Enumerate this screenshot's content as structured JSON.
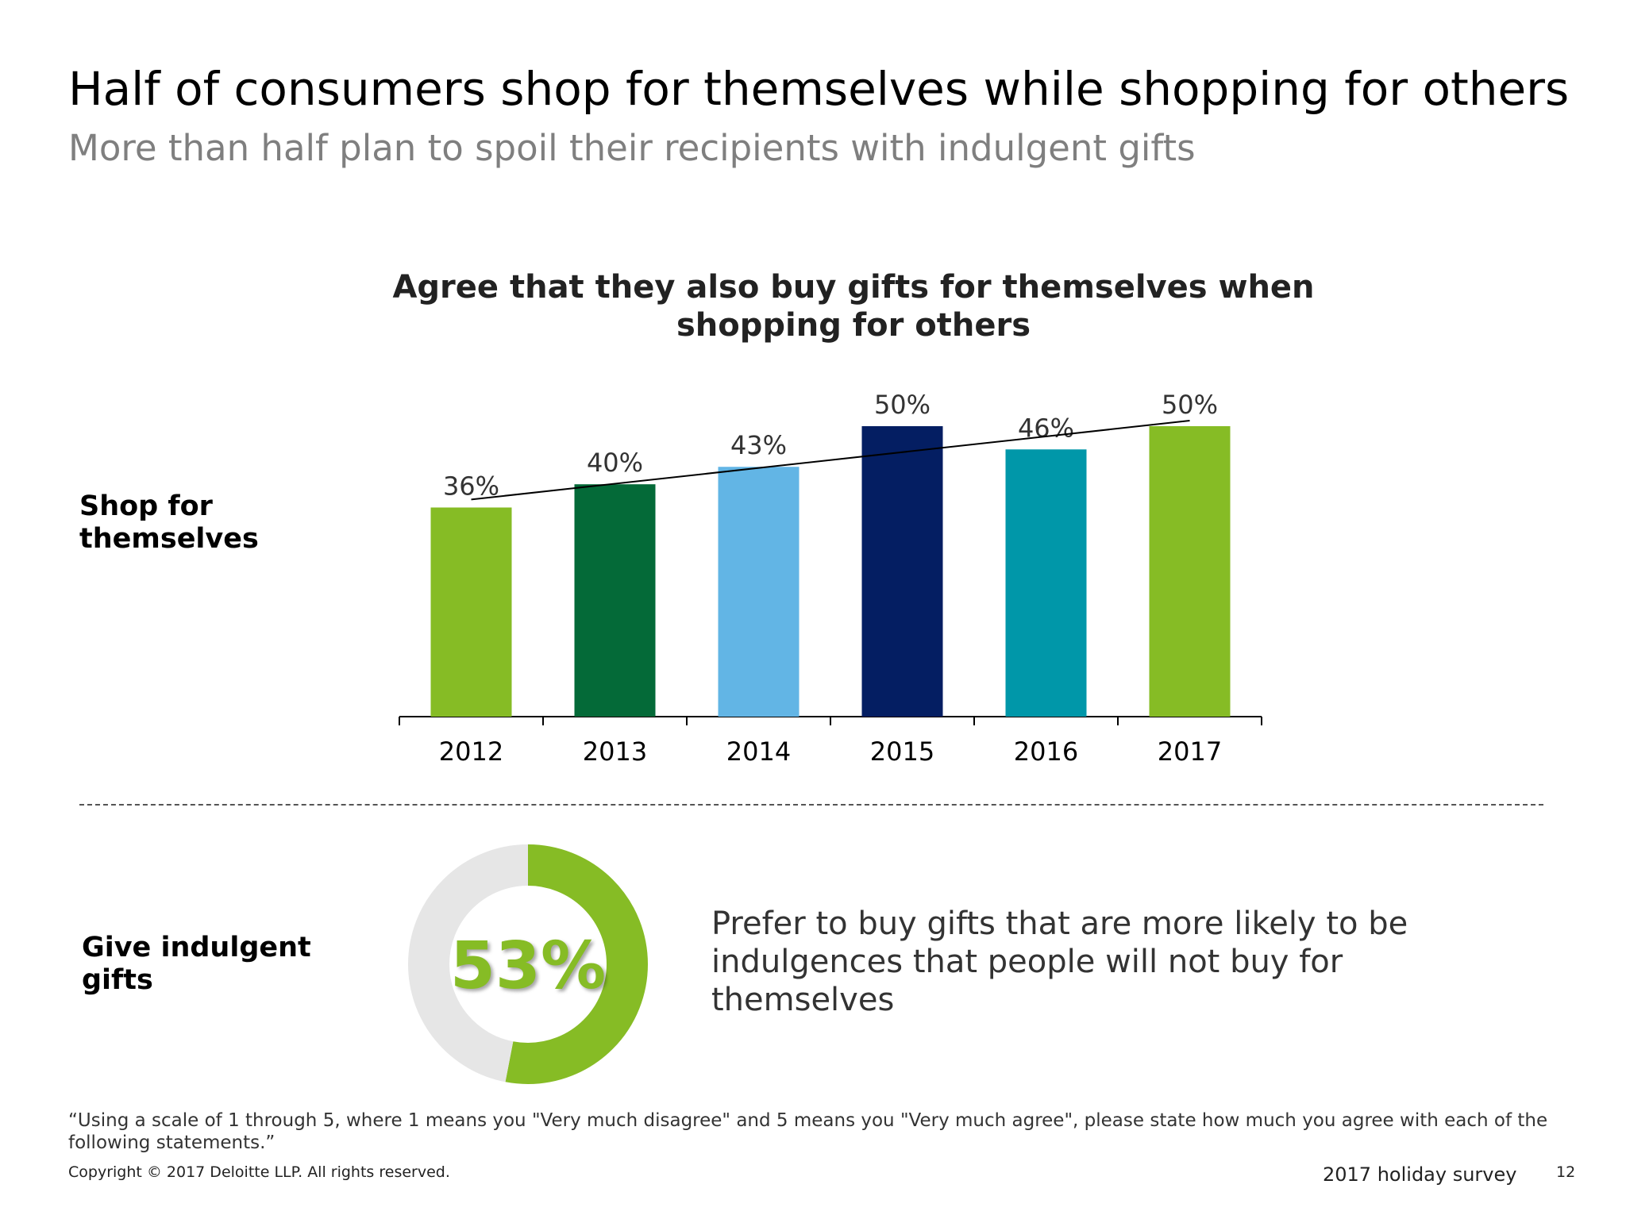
{
  "header": {
    "title": "Half of consumers shop for themselves while shopping for others",
    "subtitle": "More than half plan to spoil their recipients with indulgent gifts"
  },
  "rows": {
    "shop_label": "Shop for themselves",
    "give_label": "Give indulgent gifts"
  },
  "chart_data": [
    {
      "type": "bar",
      "title": "Agree that they also buy gifts for themselves when shopping for others",
      "xlabel": "",
      "ylabel": "",
      "categories": [
        "2012",
        "2013",
        "2014",
        "2015",
        "2016",
        "2017"
      ],
      "values": [
        36,
        40,
        43,
        50,
        46,
        50
      ],
      "data_labels": [
        "36%",
        "40%",
        "43%",
        "50%",
        "46%",
        "50%"
      ],
      "colors": [
        "#86bc25",
        "#046a38",
        "#62b5e5",
        "#041e62",
        "#0097a9",
        "#86bc25"
      ],
      "trendline": true,
      "trendline_color": "#000000",
      "ylim": [
        0,
        50
      ],
      "grid": false,
      "legend": "none"
    },
    {
      "type": "pie",
      "style": "donut",
      "values": [
        53,
        47
      ],
      "colors": [
        "#86bc25",
        "#e6e6e6"
      ],
      "center_label": "53%"
    }
  ],
  "statement": "Prefer to buy gifts that are more likely to be indulgences that people will not buy for themselves",
  "footer": {
    "footnote": "“Using a scale of 1 through 5, where 1 means you \"Very much disagree\" and 5 means you \"Very much agree\", please state how much you agree with each of the following statements.”",
    "copyright": "Copyright © 2017 Deloitte LLP. All rights reserved.",
    "survey_name": "2017 holiday survey",
    "page_number": "12"
  }
}
